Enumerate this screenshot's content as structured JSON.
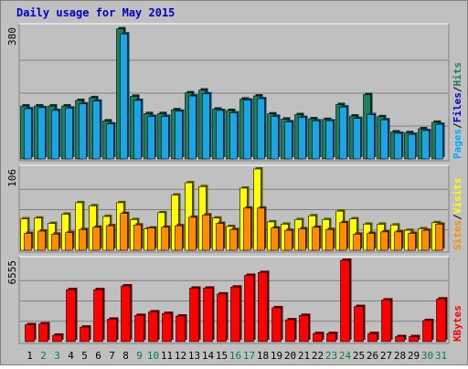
{
  "chart_data": {
    "type": "bar",
    "title": "Daily usage for May 2015",
    "days": [
      "1",
      "2",
      "3",
      "4",
      "5",
      "6",
      "7",
      "8",
      "9",
      "10",
      "11",
      "12",
      "13",
      "14",
      "15",
      "16",
      "17",
      "18",
      "19",
      "20",
      "21",
      "22",
      "23",
      "24",
      "25",
      "26",
      "27",
      "28",
      "29",
      "30",
      "31"
    ],
    "weekend_days": [
      "2",
      "3",
      "9",
      "10",
      "16",
      "17",
      "23",
      "24",
      "30",
      "31"
    ],
    "colors": {
      "title": "#0000cc",
      "hits": "#1e7f5c",
      "files": "#1aa5e6",
      "pages": "#00aaff",
      "visits": "#ffff00",
      "sites": "#ff8c00",
      "kbytes": "#ff0000",
      "weekend_label": "#007f3f",
      "weekday_label": "#000000",
      "panel_bg": "#c0c0c0"
    },
    "panels": [
      {
        "scale_label": "380",
        "ymax": 380,
        "legend": [
          {
            "text": "Pages",
            "color": "#00aaff"
          },
          {
            "text": "/",
            "color": "#000000"
          },
          {
            "text": "Files",
            "color": "#0000cc"
          },
          {
            "text": "/",
            "color": "#000000"
          },
          {
            "text": "Hits",
            "color": "#1e7f5c"
          }
        ],
        "series": [
          {
            "name": "Hits",
            "color": "#1e7f5c",
            "values": [
              153,
              153,
              153,
              153,
              169,
              177,
              110,
              376,
              181,
              131,
              131,
              142,
              191,
              199,
              144,
              140,
              173,
              182,
              130,
              115,
              128,
              116,
              114,
              157,
              124,
              186,
              122,
              78,
              76,
              87,
              106
            ]
          },
          {
            "name": "Files",
            "color": "#1aa5e6",
            "values": [
              145,
              148,
              140,
              147,
              159,
              167,
              101,
              361,
              169,
              123,
              123,
              138,
              182,
              188,
              140,
              133,
              170,
              174,
              123,
              107,
              120,
              110,
              110,
              150,
              117,
              128,
              113,
              74,
              71,
              82,
              100
            ]
          }
        ]
      },
      {
        "scale_label": "106",
        "ymax": 106,
        "legend": [
          {
            "text": "Sites",
            "color": "#ff8c00"
          },
          {
            "text": "/",
            "color": "#000000"
          },
          {
            "text": "Visits",
            "color": "#ffff00"
          }
        ],
        "series": [
          {
            "name": "Visits",
            "color": "#ffff00",
            "values": [
              41,
              42,
              35,
              47,
              62,
              58,
              44,
              62,
              40,
              28,
              49,
              72,
              88,
              83,
              42,
              31,
              81,
              106,
              37,
              34,
              40,
              45,
              40,
              51,
              41,
              34,
              34,
              33,
              26,
              28,
              36
            ]
          },
          {
            "name": "Sites",
            "color": "#ff8c00",
            "values": [
              22,
              25,
              21,
              23,
              27,
              30,
              32,
              48,
              33,
              29,
              30,
              32,
              43,
              46,
              35,
              27,
              55,
              55,
              29,
              26,
              28,
              30,
              27,
              36,
              21,
              22,
              24,
              24,
              22,
              26,
              34
            ]
          }
        ]
      },
      {
        "scale_label": "6555",
        "ymax": 6555,
        "legend": [
          {
            "text": "KBytes",
            "color": "#ff0000"
          }
        ],
        "series": [
          {
            "name": "KBytes",
            "color": "#ff0000",
            "values": [
              1360,
              1430,
              516,
              4190,
              1170,
              4190,
              1810,
              4490,
              2110,
              2400,
              2270,
              2060,
              4310,
              4310,
              3840,
              4400,
              5340,
              5570,
              2730,
              1760,
              2110,
              652,
              652,
              6555,
              2830,
              652,
              3360,
              402,
              402,
              1700,
              3440
            ]
          }
        ]
      }
    ]
  }
}
